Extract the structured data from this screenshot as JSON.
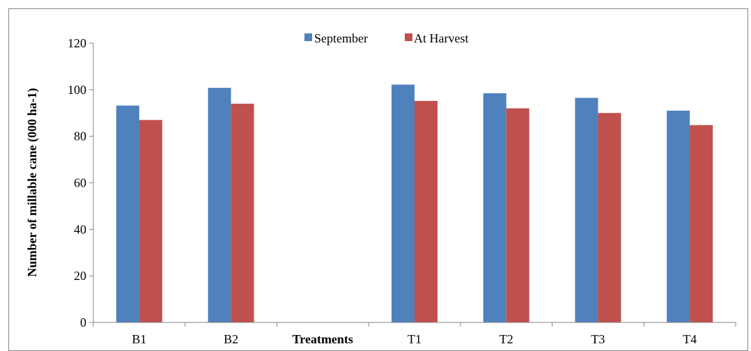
{
  "chart_data": {
    "type": "bar",
    "categories": [
      "B1",
      "B2",
      "Treatments",
      "T1",
      "T2",
      "T3",
      "T4"
    ],
    "series": [
      {
        "name": "September",
        "values": [
          93.2,
          100.8,
          null,
          102.2,
          98.5,
          96.5,
          91.0
        ],
        "color": "#4f81bd"
      },
      {
        "name": "At Harvest",
        "values": [
          87.0,
          94.0,
          null,
          95.2,
          92.0,
          90.0,
          84.8
        ],
        "color": "#c0504d"
      }
    ],
    "xlabel": "",
    "ylabel": "Number of millable cane (000 ha-1)",
    "ylim": [
      0,
      120
    ],
    "yticks": [
      0,
      20,
      40,
      60,
      80,
      100,
      120
    ],
    "grid": false,
    "legend_position": "top-center"
  }
}
